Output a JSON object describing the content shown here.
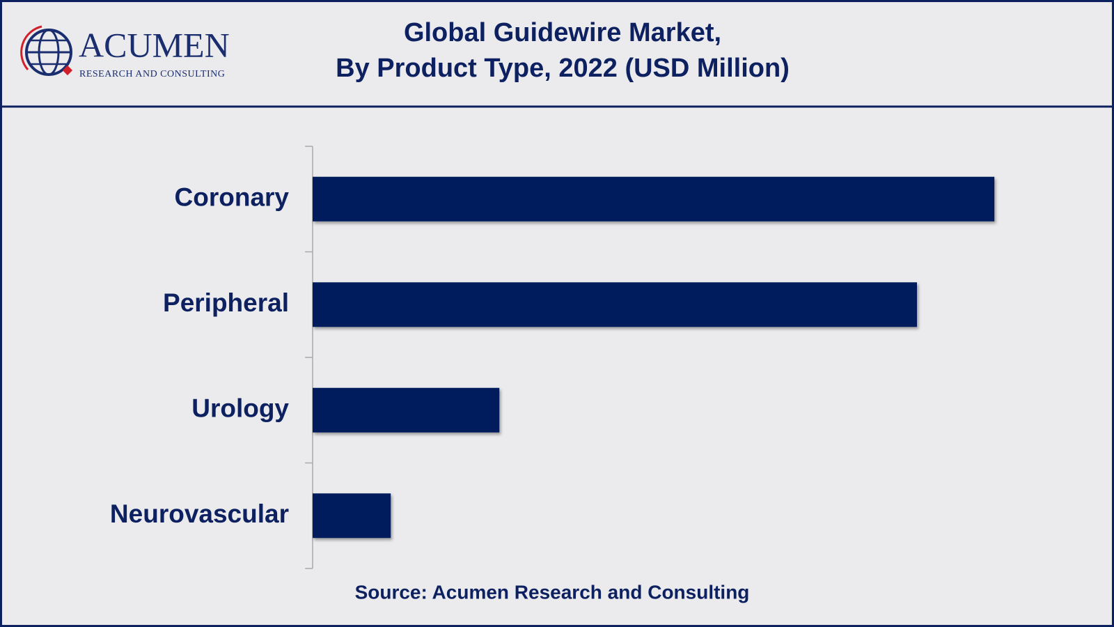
{
  "logo": {
    "name": "ACUMEN",
    "tagline": "RESEARCH AND CONSULTING"
  },
  "chart_data": {
    "type": "hbar",
    "title": [
      "Global Guidewire Market,",
      "By Product Type, 2022 (USD Million)"
    ],
    "categories": [
      "Coronary",
      "Peripheral",
      "Urology",
      "Neurovascular"
    ],
    "values": [
      960,
      851,
      263,
      110
    ],
    "color": "#001f5b",
    "xlim": [
      0,
      1000
    ],
    "source": "Source: Acumen Research and Consulting"
  }
}
